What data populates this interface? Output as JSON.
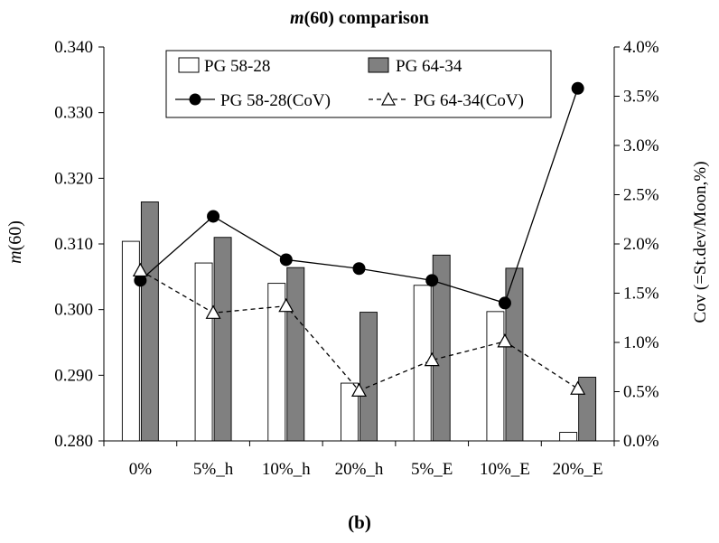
{
  "chart_data": {
    "type": "bar",
    "title": "m(60) comparison",
    "title_italic_part": "m",
    "title_rest": "(60) comparison",
    "ylabel": "m(60)",
    "ylabel_italic_part": "m",
    "ylabel_rest": "(60)",
    "y2label": "Cov (=St.dev/Moon,%)",
    "categories": [
      "0%",
      "5%_h",
      "10%_h",
      "20%_h",
      "5%_E",
      "10%_E",
      "20%_E"
    ],
    "ylim": [
      0.28,
      0.34
    ],
    "yticks": [
      "0.280",
      "0.290",
      "0.300",
      "0.310",
      "0.320",
      "0.330",
      "0.340"
    ],
    "y2lim": [
      0,
      4
    ],
    "y2ticks": [
      "0.0%",
      "0.5%",
      "1.0%",
      "1.5%",
      "2.0%",
      "2.5%",
      "3.0%",
      "3.5%",
      "4.0%"
    ],
    "legend_position": "top",
    "grid": false,
    "series": [
      {
        "name": "PG 58-28",
        "kind": "bar",
        "axis": "left",
        "color": "#ffffff",
        "values": [
          0.3104,
          0.3071,
          0.304,
          0.2888,
          0.3037,
          0.2997,
          0.2813
        ]
      },
      {
        "name": "PG 64-34",
        "kind": "bar",
        "axis": "left",
        "color": "#808080",
        "values": [
          0.3164,
          0.311,
          0.3064,
          0.2996,
          0.3083,
          0.3063,
          0.2897
        ]
      },
      {
        "name": "PG 58-28(CoV)",
        "kind": "line",
        "axis": "right",
        "marker": "circle",
        "dash": "solid",
        "values": [
          1.63,
          2.28,
          1.84,
          1.75,
          1.63,
          1.4,
          3.58
        ]
      },
      {
        "name": "PG 64-34(CoV)",
        "kind": "line",
        "axis": "right",
        "marker": "triangle",
        "dash": "dashed",
        "values": [
          1.73,
          1.3,
          1.37,
          0.51,
          0.82,
          1.01,
          0.53
        ]
      }
    ]
  },
  "caption": "(b)"
}
